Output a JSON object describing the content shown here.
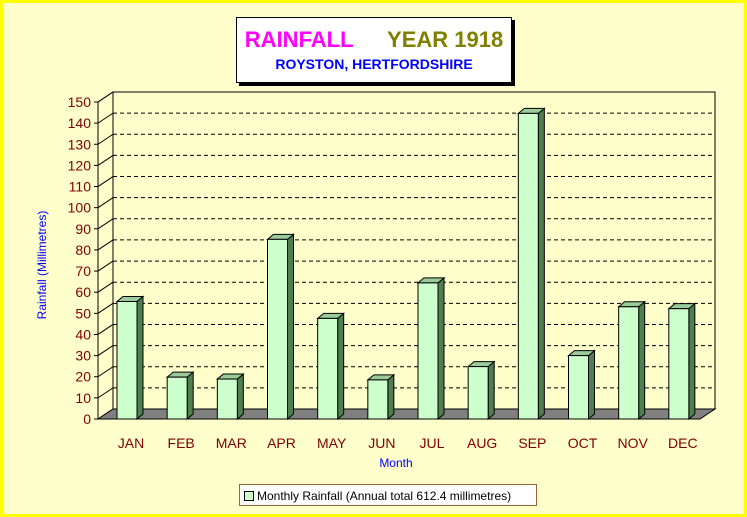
{
  "title": {
    "main_left": "RAINFALL",
    "main_right": "YEAR 1918",
    "subtitle": "ROYSTON, HERTFORDSHIRE",
    "main_left_color": "#ff00ff",
    "main_right_color": "#808000",
    "subtitle_color": "#0000ff"
  },
  "legend": {
    "label": "Monthly Rainfall (Annual total 612.4 millimetres)"
  },
  "chart_data": {
    "type": "bar",
    "title": "RAINFALL YEAR 1918",
    "subtitle": "ROYSTON, HERTFORDSHIRE",
    "xlabel": "Month",
    "ylabel": "Rainfall (Millimetres)",
    "categories": [
      "JAN",
      "FEB",
      "MAR",
      "APR",
      "MAY",
      "JUN",
      "JUL",
      "AUG",
      "SEP",
      "OCT",
      "NOV",
      "DEC"
    ],
    "series": [
      {
        "name": "Monthly Rainfall (Annual total 612.4 millimetres)",
        "values": [
          55.6,
          19.8,
          18.9,
          85.0,
          47.6,
          18.5,
          64.4,
          24.8,
          144.6,
          30.0,
          53.1,
          52.2
        ],
        "color": "#ccffcc"
      }
    ],
    "ylim": [
      0,
      150
    ],
    "yticks": [
      0,
      10,
      20,
      30,
      40,
      50,
      60,
      70,
      80,
      90,
      100,
      110,
      120,
      130,
      140,
      150
    ],
    "grid": "dashed horizontal",
    "legend_position": "bottom",
    "colors": {
      "bar_front": "#ccffcc",
      "bar_side": "#4f7f4f",
      "bar_top": "#99cc99",
      "floor": "#808080",
      "tick_text": "#800000",
      "axis_title": "#0000ff"
    }
  }
}
